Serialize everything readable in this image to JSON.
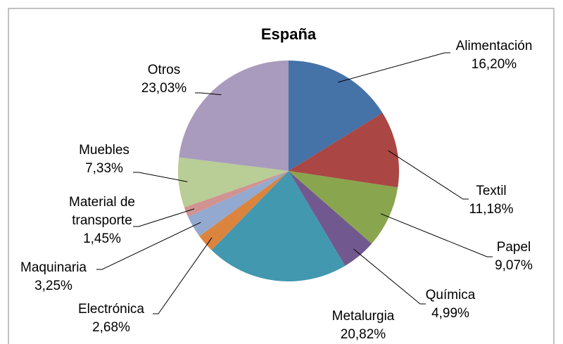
{
  "chart_data": {
    "type": "pie",
    "title": "España",
    "categories": [
      "Alimentación",
      "Textil",
      "Papel",
      "Química",
      "Metalurgia",
      "Electrónica",
      "Maquinaria",
      "Material de transporte",
      "Muebles",
      "Otros"
    ],
    "values": [
      16.2,
      11.18,
      9.07,
      4.99,
      20.82,
      2.68,
      3.25,
      1.45,
      7.33,
      23.03
    ],
    "value_labels": [
      "16,20%",
      "11,18%",
      "9,07%",
      "4,99%",
      "20,82%",
      "2,68%",
      "3,25%",
      "1,45%",
      "7,33%",
      "23,03%"
    ],
    "colors": [
      "#4572a7",
      "#aa4643",
      "#89a54e",
      "#71588f",
      "#4198af",
      "#db843d",
      "#93a9cf",
      "#d19392",
      "#b9cd96",
      "#a99bbd"
    ]
  }
}
